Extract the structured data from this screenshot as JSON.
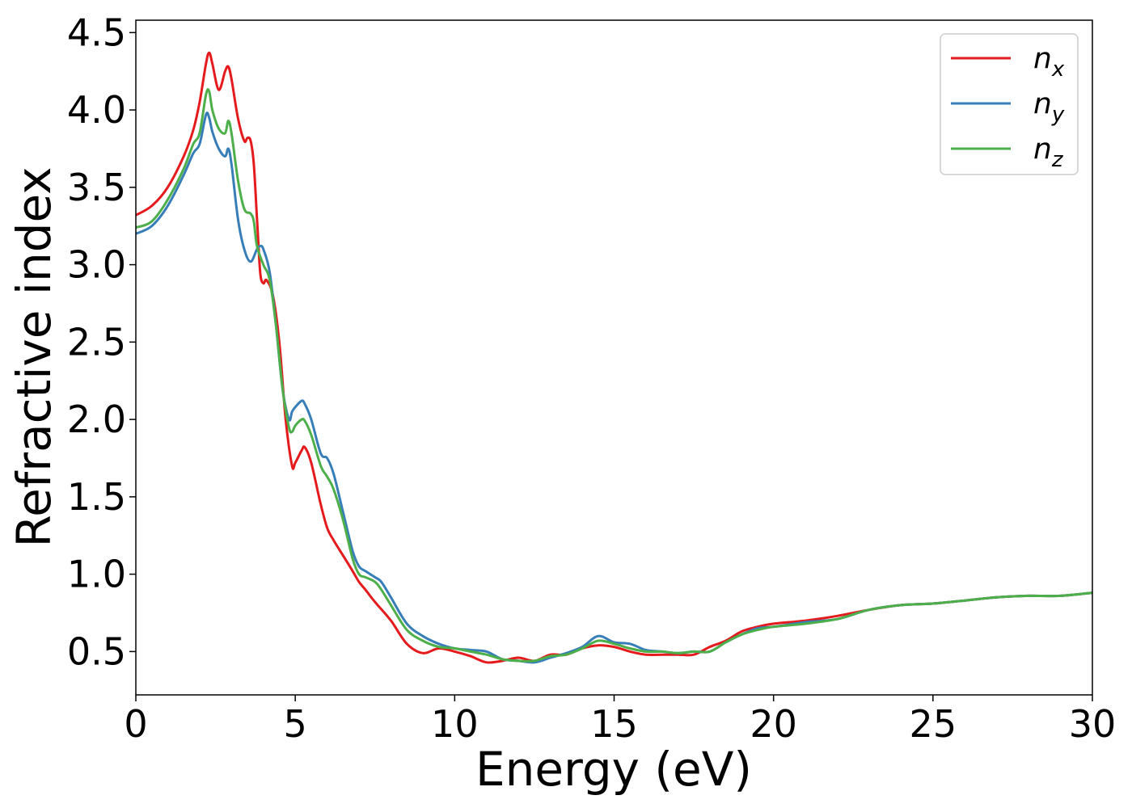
{
  "chart_data": {
    "type": "line",
    "title": "",
    "xlabel": "Energy (eV)",
    "ylabel": "Refractive index",
    "xlim": [
      0,
      30
    ],
    "ylim": [
      0.22,
      4.58
    ],
    "xticks": [
      0,
      5,
      10,
      15,
      20,
      25,
      30
    ],
    "yticks": [
      0.5,
      1.0,
      1.5,
      2.0,
      2.5,
      3.0,
      3.5,
      4.0,
      4.5
    ],
    "xtick_labels": [
      "0",
      "5",
      "10",
      "15",
      "20",
      "25",
      "30"
    ],
    "ytick_labels": [
      "0.5",
      "1.0",
      "1.5",
      "2.0",
      "2.5",
      "3.0",
      "3.5",
      "4.0",
      "4.5"
    ],
    "grid": false,
    "legend_position": "top-right",
    "series": [
      {
        "name": "n_x",
        "label_base": "n",
        "label_sub": "x",
        "color": "#e41a1c",
        "x": [
          0,
          0.5,
          1.0,
          1.5,
          1.8,
          2.0,
          2.2,
          2.3,
          2.4,
          2.6,
          2.8,
          2.9,
          3.0,
          3.2,
          3.4,
          3.5,
          3.6,
          3.7,
          3.8,
          3.9,
          4.0,
          4.1,
          4.3,
          4.5,
          4.7,
          4.9,
          5.0,
          5.2,
          5.3,
          5.5,
          5.8,
          6.0,
          6.2,
          6.5,
          6.8,
          7.0,
          7.2,
          7.5,
          8.0,
          8.5,
          9.0,
          9.5,
          10.0,
          10.5,
          11.0,
          11.5,
          12.0,
          12.5,
          13.0,
          13.5,
          14.0,
          14.5,
          15.0,
          15.5,
          16.0,
          16.5,
          17.0,
          17.5,
          18.0,
          18.5,
          19.0,
          19.5,
          20.0,
          21.0,
          22.0,
          23.0,
          24.0,
          25.0,
          26.0,
          27.0,
          28.0,
          29.0,
          30.0
        ],
        "y": [
          3.32,
          3.38,
          3.5,
          3.7,
          3.87,
          4.05,
          4.3,
          4.37,
          4.3,
          4.13,
          4.25,
          4.28,
          4.2,
          3.95,
          3.8,
          3.82,
          3.8,
          3.65,
          3.3,
          2.95,
          2.88,
          2.9,
          2.8,
          2.5,
          2.0,
          1.7,
          1.72,
          1.8,
          1.82,
          1.72,
          1.45,
          1.3,
          1.22,
          1.12,
          1.02,
          0.95,
          0.9,
          0.82,
          0.7,
          0.55,
          0.49,
          0.52,
          0.5,
          0.47,
          0.43,
          0.44,
          0.46,
          0.44,
          0.48,
          0.48,
          0.52,
          0.54,
          0.53,
          0.5,
          0.48,
          0.48,
          0.48,
          0.48,
          0.53,
          0.57,
          0.63,
          0.66,
          0.68,
          0.7,
          0.73,
          0.77,
          0.8,
          0.81,
          0.83,
          0.85,
          0.86,
          0.86,
          0.88
        ]
      },
      {
        "name": "n_y",
        "label_base": "n",
        "label_sub": "y",
        "color": "#377eb8",
        "x": [
          0,
          0.5,
          1.0,
          1.5,
          1.8,
          2.0,
          2.2,
          2.3,
          2.4,
          2.6,
          2.8,
          2.9,
          3.0,
          3.2,
          3.4,
          3.6,
          3.8,
          3.9,
          4.0,
          4.2,
          4.4,
          4.6,
          4.8,
          4.9,
          5.0,
          5.2,
          5.3,
          5.5,
          5.8,
          6.0,
          6.2,
          6.5,
          6.8,
          7.0,
          7.2,
          7.5,
          7.7,
          8.0,
          8.5,
          9.0,
          9.5,
          10.0,
          10.5,
          11.0,
          11.5,
          12.0,
          12.5,
          13.0,
          13.5,
          14.0,
          14.5,
          15.0,
          15.5,
          16.0,
          16.5,
          17.0,
          17.5,
          18.0,
          18.5,
          19.0,
          19.5,
          20.0,
          21.0,
          22.0,
          23.0,
          24.0,
          25.0,
          26.0,
          27.0,
          28.0,
          29.0,
          30.0
        ],
        "y": [
          3.2,
          3.25,
          3.38,
          3.58,
          3.72,
          3.78,
          3.97,
          3.95,
          3.86,
          3.75,
          3.7,
          3.75,
          3.65,
          3.3,
          3.1,
          3.02,
          3.1,
          3.12,
          3.1,
          2.95,
          2.6,
          2.2,
          2.0,
          2.05,
          2.08,
          2.12,
          2.1,
          2.0,
          1.78,
          1.75,
          1.65,
          1.4,
          1.15,
          1.05,
          1.02,
          0.98,
          0.95,
          0.85,
          0.68,
          0.6,
          0.55,
          0.52,
          0.51,
          0.5,
          0.45,
          0.44,
          0.43,
          0.46,
          0.49,
          0.53,
          0.6,
          0.56,
          0.55,
          0.51,
          0.5,
          0.49,
          0.5,
          0.5,
          0.56,
          0.61,
          0.65,
          0.66,
          0.69,
          0.71,
          0.77,
          0.8,
          0.81,
          0.83,
          0.85,
          0.86,
          0.86,
          0.88
        ]
      },
      {
        "name": "n_z",
        "label_base": "n",
        "label_sub": "z",
        "color": "#4daf4a",
        "x": [
          0,
          0.5,
          1.0,
          1.5,
          1.8,
          2.0,
          2.2,
          2.3,
          2.4,
          2.6,
          2.8,
          2.9,
          3.0,
          3.2,
          3.4,
          3.6,
          3.7,
          3.8,
          4.0,
          4.2,
          4.4,
          4.6,
          4.8,
          4.9,
          5.0,
          5.2,
          5.3,
          5.5,
          5.8,
          6.0,
          6.2,
          6.5,
          6.8,
          7.0,
          7.2,
          7.5,
          7.7,
          8.0,
          8.5,
          9.0,
          9.5,
          10.0,
          10.5,
          11.0,
          11.5,
          12.0,
          12.5,
          13.0,
          13.5,
          14.0,
          14.5,
          15.0,
          15.5,
          16.0,
          16.5,
          17.0,
          17.5,
          18.0,
          18.5,
          19.0,
          19.5,
          20.0,
          21.0,
          22.0,
          23.0,
          24.0,
          25.0,
          26.0,
          27.0,
          28.0,
          29.0,
          30.0
        ],
        "y": [
          3.24,
          3.28,
          3.42,
          3.62,
          3.78,
          3.85,
          4.1,
          4.12,
          4.0,
          3.88,
          3.85,
          3.93,
          3.85,
          3.55,
          3.36,
          3.33,
          3.28,
          3.12,
          3.0,
          2.9,
          2.6,
          2.2,
          1.95,
          1.92,
          1.96,
          2.0,
          1.99,
          1.9,
          1.7,
          1.63,
          1.55,
          1.35,
          1.1,
          1.0,
          0.98,
          0.95,
          0.9,
          0.8,
          0.64,
          0.57,
          0.53,
          0.52,
          0.5,
          0.48,
          0.45,
          0.44,
          0.44,
          0.47,
          0.48,
          0.52,
          0.57,
          0.55,
          0.52,
          0.5,
          0.5,
          0.49,
          0.5,
          0.5,
          0.56,
          0.61,
          0.64,
          0.66,
          0.68,
          0.71,
          0.77,
          0.8,
          0.81,
          0.83,
          0.85,
          0.86,
          0.86,
          0.88
        ]
      }
    ]
  }
}
